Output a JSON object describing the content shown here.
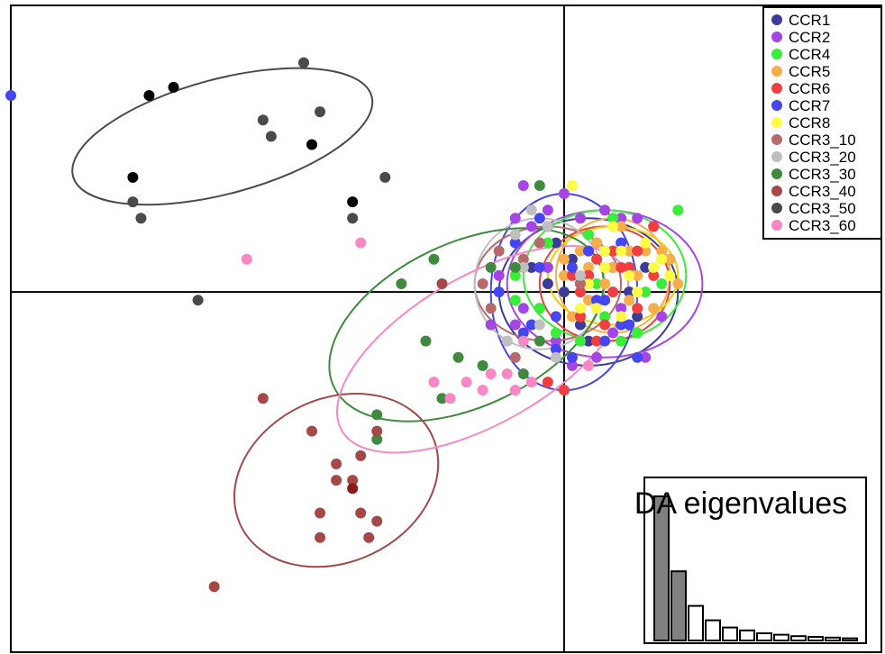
{
  "chart_data": [
    {
      "type": "scatter",
      "title": "",
      "xlabel": "",
      "ylabel": "",
      "grid": false,
      "axes_lines": "through-origin",
      "xlim": [
        -6.8,
        3.9
      ],
      "ylim": [
        -4.4,
        3.5
      ],
      "legend": {
        "position": "top-right",
        "entries": [
          "CCR1",
          "CCR2",
          "CCR4",
          "CCR5",
          "CCR6",
          "CCR7",
          "CCR8",
          "CCR3_10",
          "CCR3_20",
          "CCR3_30",
          "CCR3_40",
          "CCR3_50",
          "CCR3_60"
        ]
      },
      "series": [
        {
          "name": "CCR1",
          "color": "#3b3b9a",
          "points": [
            [
              0,
              0
            ],
            [
              -0.2,
              0.1
            ],
            [
              0.3,
              0.2
            ],
            [
              0.5,
              -0.1
            ],
            [
              -0.3,
              -0.2
            ],
            [
              0.1,
              0.4
            ],
            [
              0.6,
              0.3
            ],
            [
              -0.1,
              0.6
            ],
            [
              0.2,
              -0.4
            ],
            [
              0.8,
              0
            ],
            [
              0.4,
              0.6
            ],
            [
              -0.4,
              0.3
            ],
            [
              0.9,
              -0.3
            ],
            [
              0.3,
              -0.6
            ],
            [
              1.0,
              0.3
            ]
          ],
          "ellipse": {
            "cx": 0.3,
            "cy": 0.0,
            "rx": 1.1,
            "ry": 0.9,
            "angle": 0
          }
        },
        {
          "name": "CCR2",
          "color": "#a545e6",
          "points": [
            [
              -0.5,
              1.3
            ],
            [
              -0.6,
              0.9
            ],
            [
              0.7,
              0.9
            ],
            [
              -0.3,
              0.6
            ],
            [
              0.2,
              -0.3
            ],
            [
              -0.5,
              -0.2
            ],
            [
              0.6,
              -0.5
            ],
            [
              1.2,
              -0.3
            ],
            [
              0.1,
              -0.9
            ],
            [
              0.4,
              -0.8
            ],
            [
              -0.2,
              1.0
            ],
            [
              0.9,
              0.9
            ],
            [
              -0.8,
              0.2
            ],
            [
              -0.6,
              -0.4
            ],
            [
              1.1,
              0.8
            ],
            [
              0.5,
              1.0
            ],
            [
              -0.1,
              -0.6
            ],
            [
              -0.4,
              0.8
            ],
            [
              0.0,
              1.2
            ],
            [
              0.7,
              -0.2
            ],
            [
              1.3,
              0.4
            ],
            [
              -0.6,
              0.6
            ],
            [
              0.3,
              0.5
            ],
            [
              -0.2,
              0.3
            ],
            [
              0.2,
              0.9
            ],
            [
              1.0,
              -0.8
            ],
            [
              -0.9,
              -0.4
            ],
            [
              -0.7,
              -0.6
            ]
          ],
          "ellipse": {
            "cx": 0.5,
            "cy": 0.1,
            "rx": 1.2,
            "ry": 0.9,
            "angle": 0
          }
        },
        {
          "name": "CCR4",
          "color": "#38ee38",
          "points": [
            [
              1.4,
              1.0
            ],
            [
              -0.2,
              0.6
            ],
            [
              0.6,
              0.9
            ],
            [
              1.2,
              0.4
            ],
            [
              -0.3,
              -0.2
            ],
            [
              0.5,
              -0.3
            ],
            [
              1.2,
              0.1
            ],
            [
              -0.6,
              -0.1
            ],
            [
              0.7,
              -0.6
            ],
            [
              0.9,
              -0.5
            ],
            [
              0.2,
              -0.3
            ],
            [
              0.6,
              0.5
            ],
            [
              1.0,
              0.0
            ],
            [
              -0.1,
              -0.5
            ],
            [
              0.3,
              0.7
            ],
            [
              0.8,
              0.3
            ],
            [
              -0.6,
              0.2
            ],
            [
              0.4,
              0.1
            ],
            [
              0.2,
              -0.6
            ],
            [
              0.6,
              0.9
            ]
          ],
          "ellipse": {
            "cx": 0.5,
            "cy": 0.2,
            "rx": 1.0,
            "ry": 0.8,
            "angle": 0
          }
        },
        {
          "name": "CCR5",
          "color": "#f6ae4b",
          "points": [
            [
              1.4,
              0.1
            ],
            [
              1.3,
              0.4
            ],
            [
              1.2,
              0.5
            ],
            [
              0.0,
              0.2
            ],
            [
              0.1,
              -0.3
            ],
            [
              0.6,
              0.3
            ],
            [
              0.9,
              0.2
            ],
            [
              1.1,
              -0.2
            ],
            [
              0.4,
              0.6
            ],
            [
              0.3,
              0.3
            ],
            [
              0.8,
              -0.1
            ],
            [
              0.5,
              0.1
            ],
            [
              0.2,
              0.5
            ],
            [
              1.0,
              0.5
            ],
            [
              0.7,
              0.8
            ],
            [
              0.3,
              -0.1
            ],
            [
              1.1,
              0.3
            ],
            [
              0.0,
              0.4
            ],
            [
              0.8,
              0.5
            ]
          ],
          "ellipse": {
            "cx": 0.6,
            "cy": 0.2,
            "rx": 0.7,
            "ry": 0.7,
            "angle": 0
          }
        },
        {
          "name": "CCR6",
          "color": "#f23e3e",
          "points": [
            [
              1.1,
              0.8
            ],
            [
              0.4,
              0.4
            ],
            [
              0.8,
              0.3
            ],
            [
              0.3,
              0.2
            ],
            [
              0.9,
              -0.2
            ],
            [
              0.5,
              -0.4
            ],
            [
              0.2,
              -0.3
            ],
            [
              0.6,
              0.5
            ],
            [
              0.1,
              0.2
            ],
            [
              -0.5,
              0.3
            ],
            [
              0.4,
              -0.6
            ],
            [
              0.9,
              0.5
            ],
            [
              1.1,
              0.2
            ],
            [
              0.7,
              0.3
            ],
            [
              0.6,
              0.0
            ],
            [
              -0.2,
              -1.1
            ],
            [
              0.0,
              -1.2
            ],
            [
              0.2,
              0.0
            ],
            [
              0.8,
              -0.4
            ]
          ],
          "ellipse": {
            "cx": 0.5,
            "cy": 0.1,
            "rx": 0.8,
            "ry": 0.7,
            "angle": 0
          }
        },
        {
          "name": "CCR7",
          "color": "#4545f2",
          "points": [
            [
              -6.8,
              2.4
            ],
            [
              -0.3,
              0.9
            ],
            [
              -0.6,
              0.6
            ],
            [
              0.1,
              -0.8
            ],
            [
              -0.1,
              -0.7
            ],
            [
              0.5,
              -0.1
            ],
            [
              0.8,
              -0.4
            ],
            [
              -0.2,
              0.8
            ],
            [
              0.2,
              0.1
            ],
            [
              -0.3,
              0.3
            ],
            [
              0.7,
              -0.4
            ],
            [
              0.5,
              -0.6
            ],
            [
              0.9,
              -0.8
            ],
            [
              -0.8,
              0.0
            ],
            [
              -0.4,
              -0.4
            ],
            [
              0.3,
              0.5
            ],
            [
              0.1,
              0.3
            ],
            [
              0.7,
              0.6
            ],
            [
              0.4,
              -0.1
            ],
            [
              -0.1,
              -0.3
            ],
            [
              -0.5,
              -0.5
            ],
            [
              0.5,
              0.5
            ]
          ],
          "ellipse": {
            "cx": 0.0,
            "cy": 0.0,
            "rx": 0.9,
            "ry": 1.2,
            "angle": 0
          }
        },
        {
          "name": "CCR8",
          "color": "#fcfc45",
          "points": [
            [
              0.1,
              1.3
            ],
            [
              1.2,
              0.4
            ],
            [
              1.1,
              0.3
            ],
            [
              0.7,
              0.5
            ],
            [
              0.5,
              0.3
            ],
            [
              0.3,
              0.1
            ],
            [
              0.8,
              0.2
            ],
            [
              0.9,
              0.0
            ],
            [
              0.4,
              -0.2
            ],
            [
              0.6,
              0.8
            ],
            [
              1.3,
              0.2
            ],
            [
              0.7,
              -0.3
            ],
            [
              0.2,
              -0.2
            ],
            [
              0.5,
              0.5
            ],
            [
              1.0,
              0.6
            ]
          ],
          "ellipse": {
            "cx": 0.6,
            "cy": 0.2,
            "rx": 0.8,
            "ry": 0.6,
            "angle": 0
          }
        },
        {
          "name": "CCR3_10",
          "color": "#b76a6a",
          "points": [
            [
              -0.8,
              0.5
            ],
            [
              -0.5,
              0.4
            ],
            [
              -0.3,
              0.6
            ],
            [
              0.2,
              0.1
            ],
            [
              -0.9,
              -0.2
            ],
            [
              -0.6,
              -0.8
            ],
            [
              -1.0,
              0.1
            ]
          ],
          "ellipse": {
            "cx": -0.2,
            "cy": 0.1,
            "rx": 0.9,
            "ry": 0.7,
            "angle": 0
          }
        },
        {
          "name": "CCR3_20",
          "color": "#bfbfbf",
          "points": [
            [
              -0.4,
              1.0
            ],
            [
              -0.2,
              0.8
            ],
            [
              -0.7,
              -0.6
            ],
            [
              -0.1,
              -0.8
            ],
            [
              0.2,
              0.2
            ],
            [
              -0.5,
              0.3
            ],
            [
              -0.3,
              -0.4
            ],
            [
              -0.6,
              0.7
            ]
          ],
          "ellipse": {
            "cx": -0.3,
            "cy": 0.1,
            "rx": 0.8,
            "ry": 0.8,
            "angle": 0
          }
        },
        {
          "name": "CCR3_30",
          "color": "#3f8a3f",
          "points": [
            [
              -0.3,
              1.3
            ],
            [
              -1.6,
              0.4
            ],
            [
              -1.5,
              -1.3
            ],
            [
              -2.0,
              0.1
            ],
            [
              -0.5,
              -1.0
            ],
            [
              -2.3,
              -1.5
            ],
            [
              -2.3,
              -1.8
            ],
            [
              -1.7,
              -0.6
            ],
            [
              -1.0,
              -0.9
            ],
            [
              -0.6,
              0.3
            ],
            [
              -0.3,
              -0.6
            ],
            [
              -1.3,
              -0.8
            ],
            [
              -0.9,
              0.3
            ]
          ],
          "ellipse": {
            "cx": -1.2,
            "cy": -0.4,
            "rx": 1.8,
            "ry": 1.0,
            "angle": -25
          }
        },
        {
          "name": "CCR3_40",
          "color": "#a54848",
          "points": [
            [
              -3.7,
              -1.3
            ],
            [
              -2.8,
              -2.1
            ],
            [
              -2.3,
              -1.7
            ],
            [
              -2.5,
              -2.0
            ],
            [
              -2.8,
              -2.3
            ],
            [
              -3.1,
              -1.7
            ],
            [
              -3.0,
              -2.7
            ],
            [
              -2.5,
              -2.7
            ],
            [
              -2.3,
              -2.8
            ],
            [
              -2.4,
              -3.0
            ],
            [
              -3.0,
              -3.0
            ],
            [
              -4.3,
              -3.6
            ],
            [
              -1.5,
              0.1
            ],
            [
              -2.6,
              -2.3
            ]
          ],
          "ellipse": {
            "cx": -2.8,
            "cy": -2.3,
            "rx": 1.3,
            "ry": 1.0,
            "angle": -25
          }
        },
        {
          "name": "CCR3_50",
          "color": "#4a4a4a",
          "points": [
            [
              -3.2,
              2.8
            ],
            [
              -3.0,
              2.2
            ],
            [
              -3.7,
              2.1
            ],
            [
              -5.2,
              0.9
            ],
            [
              -4.5,
              -0.1
            ],
            [
              -5.3,
              1.1
            ],
            [
              -3.6,
              1.9
            ],
            [
              -2.2,
              1.4
            ],
            [
              -2.6,
              0.9
            ]
          ],
          "ellipse": {
            "cx": -4.2,
            "cy": 1.9,
            "rx": 1.9,
            "ry": 0.7,
            "angle": -15
          }
        },
        {
          "name": "CCR3_60",
          "color": "#f887c6",
          "points": [
            [
              -3.9,
              0.4
            ],
            [
              -2.5,
              0.6
            ],
            [
              -1.6,
              -1.1
            ],
            [
              -1.4,
              -1.3
            ],
            [
              -1.2,
              -1.1
            ],
            [
              -0.6,
              -1.2
            ],
            [
              -0.4,
              -1.1
            ],
            [
              -0.9,
              -1.0
            ],
            [
              0.3,
              -0.9
            ],
            [
              -0.5,
              -0.6
            ],
            [
              -0.7,
              -1.0
            ],
            [
              -1.0,
              -1.2
            ]
          ],
          "ellipse": {
            "cx": -1.0,
            "cy": -0.7,
            "rx": 2.0,
            "ry": 0.9,
            "angle": -30
          }
        }
      ],
      "overlay_dots": [
        {
          "color": "#000000",
          "points": [
            [
              -5.1,
              2.4
            ],
            [
              -5.3,
              1.4
            ],
            [
              -4.8,
              2.5
            ],
            [
              -3.1,
              1.8
            ],
            [
              -2.6,
              1.1
            ]
          ]
        },
        {
          "color": "#8b1a1a",
          "points": [
            [
              -2.6,
              -2.4
            ]
          ]
        }
      ]
    },
    {
      "type": "bar",
      "title": "DA eigenvalues",
      "values": [
        100,
        48,
        24,
        14,
        9,
        7,
        5,
        4,
        3,
        2.5,
        2,
        1.5
      ],
      "highlight_count": 2,
      "highlight_color": "#808080",
      "base_color": "#ffffff"
    }
  ]
}
